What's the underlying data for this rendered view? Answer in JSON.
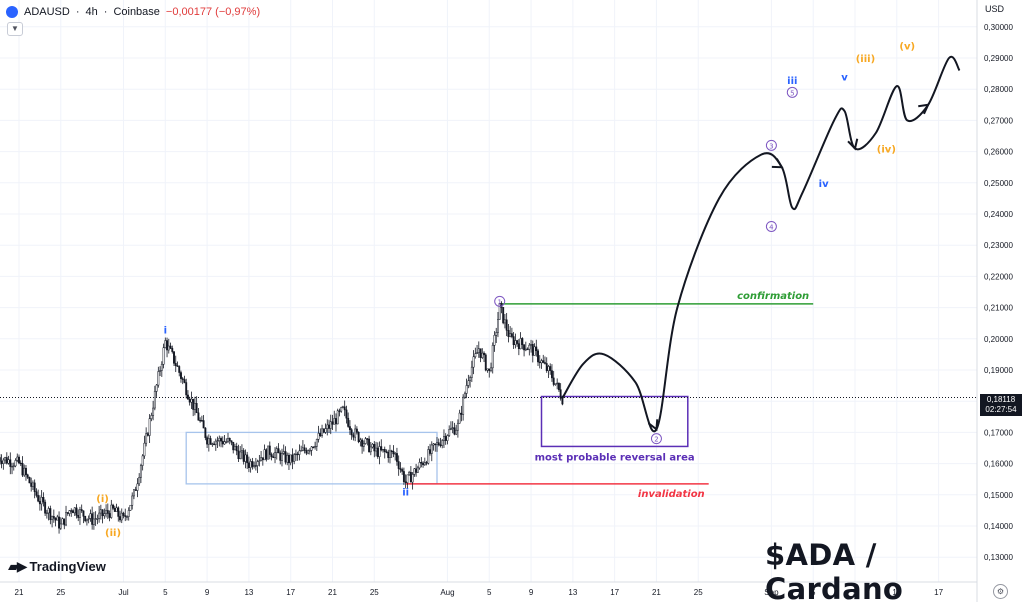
{
  "header": {
    "symbol": "ADAUSD",
    "interval": "4h",
    "exchange": "Coinbase",
    "change": "−0,00177 (−0,97%)",
    "collapse_icon": "chevron-down-icon"
  },
  "brand": {
    "name": "TradingView",
    "logo_icon": "tradingview-logo-icon"
  },
  "title": "$ADA / Cardano",
  "price_axis": {
    "currency": "USD",
    "current_price": "0,18118",
    "countdown": "02:27:54",
    "settings_icon": "gear-icon"
  },
  "colors": {
    "wave_orange": "#f7a823",
    "wave_blue": "#2962ff",
    "wave_purple": "#7e57c2",
    "confirmation": "#2e9d35",
    "invalidation": "#f23645",
    "box_blue": "#a7c4ec",
    "box_purple": "#5b2fb6"
  },
  "chart_data": {
    "type": "candlestick",
    "symbol": "ADAUSD",
    "interval": "4h",
    "ylim": [
      0.12,
      0.3
    ],
    "y_ticks": [
      "0,13000",
      "0,14000",
      "0,15000",
      "0,16000",
      "0,17000",
      "0,18000",
      "0,19000",
      "0,20000",
      "0,21000",
      "0,22000",
      "0,23000",
      "0,24000",
      "0,25000",
      "0,26000",
      "0,27000",
      "0,28000",
      "0,29000",
      "0,30000"
    ],
    "x_ticks": [
      "21",
      "25",
      "Jul",
      "5",
      "9",
      "13",
      "17",
      "21",
      "25",
      "Aug",
      "5",
      "9",
      "13",
      "17",
      "21",
      "25",
      "Sep",
      "5",
      "9",
      "13",
      "17"
    ],
    "price_path": [
      [
        "Jun 19",
        0.162
      ],
      [
        "Jun 21",
        0.16
      ],
      [
        "Jun 23",
        0.148
      ],
      [
        "Jun 25",
        0.14
      ],
      [
        "Jun 26",
        0.146
      ],
      [
        "Jun 28",
        0.142
      ],
      [
        "Jun 30",
        0.145
      ],
      [
        "Jul 1",
        0.142
      ],
      [
        "Jul 2",
        0.15
      ],
      [
        "Jul 3",
        0.165
      ],
      [
        "Jul 4",
        0.182
      ],
      [
        "Jul 5",
        0.199
      ],
      [
        "Jul 6",
        0.192
      ],
      [
        "Jul 7",
        0.184
      ],
      [
        "Jul 9",
        0.168
      ],
      [
        "Jul 11",
        0.167
      ],
      [
        "Jul 13",
        0.16
      ],
      [
        "Jul 15",
        0.164
      ],
      [
        "Jul 17",
        0.161
      ],
      [
        "Jul 19",
        0.166
      ],
      [
        "Jul 21",
        0.173
      ],
      [
        "Jul 22",
        0.177
      ],
      [
        "Jul 23",
        0.17
      ],
      [
        "Jul 25",
        0.164
      ],
      [
        "Jul 27",
        0.163
      ],
      [
        "Jul 28",
        0.154
      ],
      [
        "Jul 30",
        0.162
      ],
      [
        "Aug 1",
        0.17
      ],
      [
        "Aug 2",
        0.172
      ],
      [
        "Aug 3",
        0.188
      ],
      [
        "Aug 4",
        0.197
      ],
      [
        "Aug 5",
        0.189
      ],
      [
        "Aug 6",
        0.21
      ],
      [
        "Aug 7",
        0.2
      ],
      [
        "Aug 9",
        0.197
      ],
      [
        "Aug 11",
        0.188
      ],
      [
        "Aug 12",
        0.181
      ]
    ],
    "projection": [
      [
        "Aug 12",
        0.181
      ],
      [
        "Aug 14",
        0.192
      ],
      [
        "Aug 16",
        0.195
      ],
      [
        "Aug 19",
        0.186
      ],
      [
        "Aug 21",
        0.171
      ],
      [
        "Aug 23",
        0.21
      ],
      [
        "Aug 27",
        0.245
      ],
      [
        "Aug 31",
        0.259
      ],
      [
        "Sep 2",
        0.255
      ],
      [
        "Sep 3",
        0.242
      ],
      [
        "Sep 4",
        0.247
      ],
      [
        "Sep 7",
        0.27
      ],
      [
        "Sep 8",
        0.273
      ],
      [
        "Sep 9",
        0.261
      ],
      [
        "Sep 11",
        0.266
      ],
      [
        "Sep 13",
        0.281
      ],
      [
        "Sep 14",
        0.27
      ],
      [
        "Sep 16",
        0.275
      ],
      [
        "Sep 18",
        0.29
      ],
      [
        "Sep 19",
        0.286
      ]
    ],
    "wave_labels": [
      {
        "text": "(i)",
        "date": "Jun 29",
        "price": 0.149,
        "color": "orange"
      },
      {
        "text": "(ii)",
        "date": "Jun 30",
        "price": 0.138,
        "color": "orange"
      },
      {
        "text": "i",
        "date": "Jul 5",
        "price": 0.203,
        "color": "blue"
      },
      {
        "text": "ii",
        "date": "Jul 28",
        "price": 0.151,
        "color": "blue"
      },
      {
        "text": "1",
        "date": "Aug 6",
        "price": 0.212,
        "color": "purple",
        "circled": true
      },
      {
        "text": "2",
        "date": "Aug 21",
        "price": 0.168,
        "color": "purple",
        "circled": true
      },
      {
        "text": "3",
        "date": "Sep 1",
        "price": 0.262,
        "color": "purple",
        "circled": true
      },
      {
        "text": "4",
        "date": "Sep 1",
        "price": 0.236,
        "color": "purple",
        "circled": true
      },
      {
        "text": "5",
        "date": "Sep 3",
        "price": 0.279,
        "color": "purple",
        "circled": true
      },
      {
        "text": "iii",
        "date": "Sep 3",
        "price": 0.283,
        "color": "blue"
      },
      {
        "text": "iv",
        "date": "Sep 6",
        "price": 0.25,
        "color": "blue"
      },
      {
        "text": "v",
        "date": "Sep 8",
        "price": 0.284,
        "color": "blue"
      },
      {
        "text": "(iii)",
        "date": "Sep 10",
        "price": 0.29,
        "color": "orange"
      },
      {
        "text": "(iv)",
        "date": "Sep 12",
        "price": 0.261,
        "color": "orange"
      },
      {
        "text": "(v)",
        "date": "Sep 14",
        "price": 0.294,
        "color": "orange"
      }
    ],
    "levels": [
      {
        "label": "confirmation",
        "price": 0.2112,
        "from": "Aug 6",
        "to": "Sep 5",
        "color": "green"
      },
      {
        "label": "invalidation",
        "price": 0.1535,
        "from": "Jul 28",
        "to": "Aug 26",
        "color": "red"
      }
    ],
    "zones": [
      {
        "label": "",
        "from": "Jul 7",
        "to": "Jul 31",
        "price_low": 0.1535,
        "price_high": 0.17,
        "color": "light-blue"
      },
      {
        "label": "most probable reversal area",
        "from": "Aug 10",
        "to": "Aug 24",
        "price_low": 0.1655,
        "price_high": 0.1815,
        "color": "purple"
      }
    ],
    "current_price": 0.18118
  }
}
